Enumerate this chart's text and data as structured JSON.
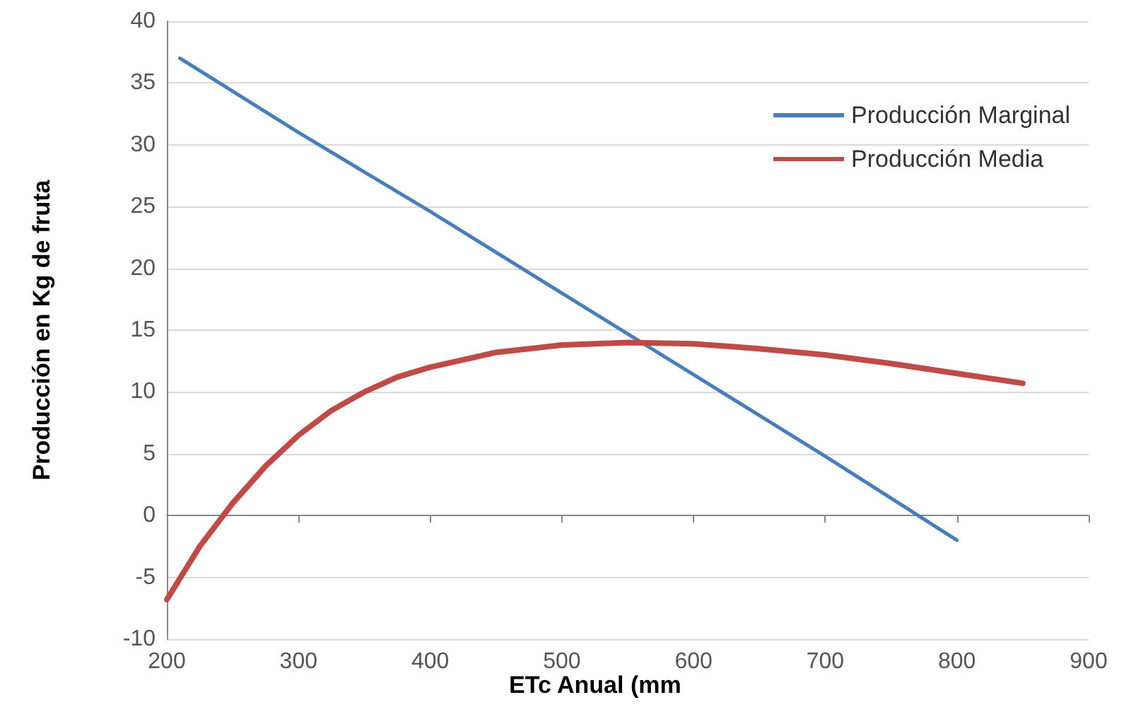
{
  "chart_data": {
    "type": "line",
    "xlabel": "ETc Anual (mm",
    "ylabel": "Producción en Kg de fruta",
    "xlim": [
      200,
      900
    ],
    "xticks": [
      200,
      300,
      400,
      500,
      600,
      700,
      800,
      900
    ],
    "ylim": [
      -10,
      40
    ],
    "yticks": [
      -10,
      -5,
      0,
      5,
      10,
      15,
      20,
      25,
      30,
      35,
      40
    ],
    "grid": "y",
    "legend": "top right",
    "marker": "none",
    "series": [
      {
        "name": "Producción Marginal",
        "color": "#4a7ebb",
        "x": [
          210,
          300,
          400,
          500,
          600,
          700,
          800
        ],
        "values": [
          37,
          31,
          24.6,
          18,
          11.4,
          4.8,
          -2
        ]
      },
      {
        "name": "Producción Media",
        "color": "#be4b48",
        "x": [
          200,
          225,
          250,
          275,
          300,
          325,
          350,
          375,
          400,
          450,
          500,
          550,
          600,
          650,
          700,
          750,
          800,
          850
        ],
        "values": [
          -6.8,
          -2.5,
          1,
          4,
          6.5,
          8.5,
          10,
          11.2,
          12,
          13.2,
          13.8,
          14,
          13.9,
          13.5,
          13,
          12.3,
          11.5,
          10.7
        ]
      }
    ]
  }
}
